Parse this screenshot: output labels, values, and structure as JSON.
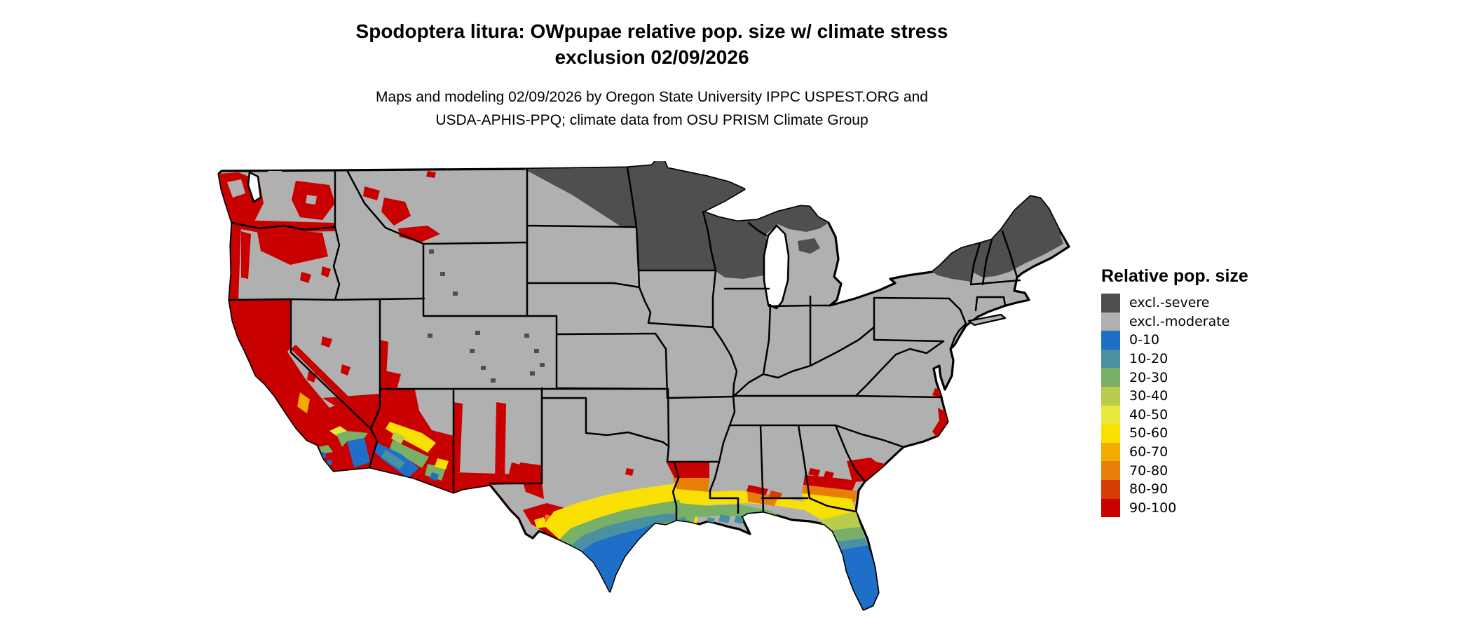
{
  "header": {
    "title_line1": "Spodoptera litura: OWpupae relative pop. size w/ climate stress",
    "title_line2": "exclusion 02/09/2026",
    "subtitle_line1": "Maps and modeling 02/09/2026 by Oregon State University IPPC USPEST.ORG and",
    "subtitle_line2": "USDA-APHIS-PPQ; climate data from OSU PRISM Climate Group"
  },
  "legend": {
    "title": "Relative pop. size",
    "items": [
      {
        "label": "excl.-severe",
        "color": "#4f4f4f"
      },
      {
        "label": "excl.-moderate",
        "color": "#b0b0b0"
      },
      {
        "label": "0-10",
        "color": "#1f6fc8"
      },
      {
        "label": "10-20",
        "color": "#4991a2"
      },
      {
        "label": "20-30",
        "color": "#77b066"
      },
      {
        "label": "30-40",
        "color": "#b9cc4d"
      },
      {
        "label": "40-50",
        "color": "#e9e83e"
      },
      {
        "label": "50-60",
        "color": "#f8e003"
      },
      {
        "label": "60-70",
        "color": "#f2ab00"
      },
      {
        "label": "70-80",
        "color": "#e87d08"
      },
      {
        "label": "80-90",
        "color": "#d63d04"
      },
      {
        "label": "90-100",
        "color": "#c90000"
      }
    ]
  },
  "map": {
    "area": "Contiguous United States",
    "background": "#ffffff",
    "base_fill": "#b0b0b0",
    "border_color": "#000000",
    "water_fill": "#ffffff",
    "regions_summary": [
      {
        "category": "excl.-severe",
        "areas": "Minnesota, Wisconsin, upper Michigan, northeastern North Dakota, Adirondack New York, northern Vermont and New Hampshire, Maine, mountain speckles in Wyoming/Utah/Colorado"
      },
      {
        "category": "excl.-moderate",
        "areas": "most of the interior, plains, midwestern and eastern United States"
      },
      {
        "category": "90-100",
        "areas": "Pacific coast and valleys of Washington, Oregon and California, southern Nevada, Arizona, southern New Mexico, west Texas, southern Georgia band, Carolina coast patches"
      },
      {
        "category": "0-10 through 50-60 gradient",
        "areas": "south Texas coast, Gulf Coast of Louisiana/Mississippi/Alabama, Florida peninsula, low deserts of southern Arizona and southeastern California"
      }
    ]
  }
}
